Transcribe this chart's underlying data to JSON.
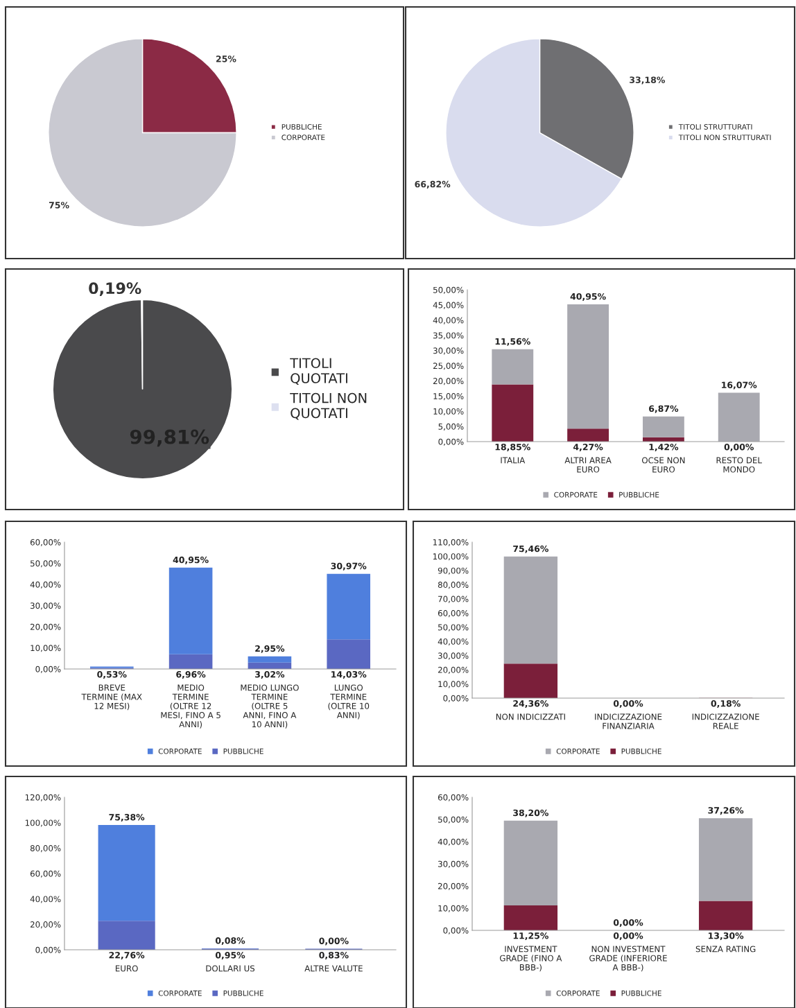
{
  "chart_data": [
    {
      "type": "pie",
      "categories": [
        "PUBBLICHE",
        "CORPORATE"
      ],
      "values": [
        25,
        75
      ],
      "colors": [
        "#8b2a45",
        "#c9c9d1"
      ],
      "value_labels": [
        "25%",
        "75%"
      ],
      "legend": "right"
    },
    {
      "type": "pie",
      "categories": [
        "TITOLI STRUTTURATI",
        "TITOLI NON STRUTTURATI"
      ],
      "values": [
        33.18,
        66.82
      ],
      "colors": [
        "#6f6f72",
        "#d9dcee"
      ],
      "value_labels": [
        "33,18%",
        "66,82%"
      ],
      "legend": "right"
    },
    {
      "type": "pie",
      "categories": [
        "TITOLI\nQUOTATI",
        "TITOLI NON\nQUOTATI"
      ],
      "values": [
        99.81,
        0.19
      ],
      "colors": [
        "#4a4a4c",
        "#dde0f0"
      ],
      "value_labels": [
        "99,81%",
        "0,19%"
      ],
      "legend": "right"
    },
    {
      "type": "bar",
      "stacked": true,
      "categories": [
        "ITALIA",
        "ALTRI AREA\nEURO",
        "OCSE NON\nEURO",
        "RESTO DEL\nMONDO"
      ],
      "series": [
        {
          "name": "PUBBLICHE",
          "color": "#7b1f3a",
          "values": [
            18.85,
            4.27,
            1.42,
            0.0
          ],
          "value_labels": [
            "18,85%",
            "4,27%",
            "1,42%",
            "0,00%"
          ]
        },
        {
          "name": "CORPORATE",
          "color": "#a9a9b0",
          "values": [
            11.56,
            40.95,
            6.87,
            16.07
          ],
          "value_labels": [
            "11,56%",
            "40,95%",
            "6,87%",
            "16,07%"
          ]
        }
      ],
      "ylim": [
        0,
        50
      ],
      "yticks": [
        {
          "value": 0,
          "label": "0,00%"
        },
        {
          "value": 5,
          "label": "5,00%"
        },
        {
          "value": 10,
          "label": "10,00%"
        },
        {
          "value": 15,
          "label": "15,00%"
        },
        {
          "value": 20,
          "label": "20,00%"
        },
        {
          "value": 25,
          "label": "25,00%"
        },
        {
          "value": 30,
          "label": "30,00%"
        },
        {
          "value": 35,
          "label": "35,00%"
        },
        {
          "value": 40,
          "label": "40,00%"
        },
        {
          "value": 45,
          "label": "45,00%"
        },
        {
          "value": 50,
          "label": "50,00%"
        }
      ],
      "legend": "bottom",
      "grid": false
    },
    {
      "type": "bar",
      "stacked": true,
      "categories": [
        "BREVE\nTERMINE (MAX\n12 MESI)",
        "MEDIO\nTERMINE\n(OLTRE 12\nMESI, FINO A 5\nANNI)",
        "MEDIO LUNGO\nTERMINE\n(OLTRE 5\nANNI, FINO A\n10 ANNI)",
        "LUNGO\nTERMINE\n(OLTRE 10\nANNI)"
      ],
      "series": [
        {
          "name": "PUBBLICHE",
          "color": "#5a68c2",
          "values": [
            0.53,
            6.96,
            3.02,
            14.03
          ],
          "value_labels": [
            "0,53%",
            "6,96%",
            "3,02%",
            "14,03%"
          ]
        },
        {
          "name": "CORPORATE",
          "color": "#4f7fdd",
          "values": [
            0.6,
            40.95,
            2.95,
            30.97
          ],
          "value_labels": [
            null,
            "40,95%",
            "2,95%",
            "30,97%"
          ]
        }
      ],
      "ylim": [
        0,
        60
      ],
      "yticks": [
        {
          "value": 0,
          "label": "0,00%"
        },
        {
          "value": 10,
          "label": "10,00%"
        },
        {
          "value": 20,
          "label": "20,00%"
        },
        {
          "value": 30,
          "label": "30,00%"
        },
        {
          "value": 40,
          "label": "40,00%"
        },
        {
          "value": 50,
          "label": "50,00%"
        },
        {
          "value": 60,
          "label": "60,00%"
        }
      ],
      "legend": "bottom",
      "grid": false
    },
    {
      "type": "bar",
      "stacked": true,
      "categories": [
        "NON INDICIZZATI",
        "INDICIZZAZIONE\nFINANZIARIA",
        "INDICIZZAZIONE\nREALE"
      ],
      "series": [
        {
          "name": "PUBBLICHE",
          "color": "#7b1f3a",
          "values": [
            24.36,
            0.0,
            0.18
          ],
          "value_labels": [
            "24,36%",
            "0,00%",
            "0,18%"
          ]
        },
        {
          "name": "CORPORATE",
          "color": "#a9a9b0",
          "values": [
            75.46,
            0.0,
            0.0
          ],
          "value_labels": [
            "75,46%",
            null,
            null
          ]
        }
      ],
      "ylim": [
        0,
        110
      ],
      "yticks": [
        {
          "value": 0,
          "label": "0,00%"
        },
        {
          "value": 10,
          "label": "10,00%"
        },
        {
          "value": 20,
          "label": "20,00%"
        },
        {
          "value": 30,
          "label": "30,00%"
        },
        {
          "value": 40,
          "label": "40,00%"
        },
        {
          "value": 50,
          "label": "50,00%"
        },
        {
          "value": 60,
          "label": "60,00%"
        },
        {
          "value": 70,
          "label": "70,00%"
        },
        {
          "value": 80,
          "label": "80,00%"
        },
        {
          "value": 90,
          "label": "90,00%"
        },
        {
          "value": 100,
          "label": "100,00%"
        },
        {
          "value": 110,
          "label": "110,00%"
        }
      ],
      "legend": "bottom",
      "grid": false
    },
    {
      "type": "bar",
      "stacked": true,
      "categories": [
        "EURO",
        "DOLLARI US",
        "ALTRE VALUTE"
      ],
      "series": [
        {
          "name": "PUBBLICHE",
          "color": "#5a68c2",
          "values": [
            22.76,
            0.95,
            0.83
          ],
          "value_labels": [
            "22,76%",
            "0,95%",
            "0,83%"
          ]
        },
        {
          "name": "CORPORATE",
          "color": "#4f7fdd",
          "values": [
            75.38,
            0.08,
            0.0
          ],
          "value_labels": [
            "75,38%",
            "0,08%",
            "0,00%"
          ]
        }
      ],
      "ylim": [
        0,
        120
      ],
      "yticks": [
        {
          "value": 0,
          "label": "0,00%"
        },
        {
          "value": 20,
          "label": "20,00%"
        },
        {
          "value": 40,
          "label": "40,00%"
        },
        {
          "value": 60,
          "label": "60,00%"
        },
        {
          "value": 80,
          "label": "80,00%"
        },
        {
          "value": 100,
          "label": "100,00%"
        },
        {
          "value": 120,
          "label": "120,00%"
        }
      ],
      "legend": "bottom",
      "grid": false
    },
    {
      "type": "bar",
      "stacked": true,
      "categories": [
        "INVESTMENT\nGRADE (FINO A\nBBB-)",
        "NON INVESTMENT\nGRADE (INFERIORE\nA BBB-)",
        "SENZA RATING"
      ],
      "series": [
        {
          "name": "PUBBLICHE",
          "color": "#7b1f3a",
          "values": [
            11.25,
            0.0,
            13.3
          ],
          "value_labels": [
            "11,25%",
            "0,00%",
            "13,30%"
          ]
        },
        {
          "name": "CORPORATE",
          "color": "#a9a9b0",
          "values": [
            38.2,
            0.0,
            37.26
          ],
          "value_labels": [
            "38,20%",
            "0,00%",
            "37,26%"
          ]
        }
      ],
      "ylim": [
        0,
        60
      ],
      "yticks": [
        {
          "value": 0,
          "label": "0,00%"
        },
        {
          "value": 10,
          "label": "10,00%"
        },
        {
          "value": 20,
          "label": "20,00%"
        },
        {
          "value": 30,
          "label": "30,00%"
        },
        {
          "value": 40,
          "label": "40,00%"
        },
        {
          "value": 50,
          "label": "50,00%"
        },
        {
          "value": 60,
          "label": "60,00%"
        }
      ],
      "legend": "bottom",
      "grid": false
    }
  ]
}
